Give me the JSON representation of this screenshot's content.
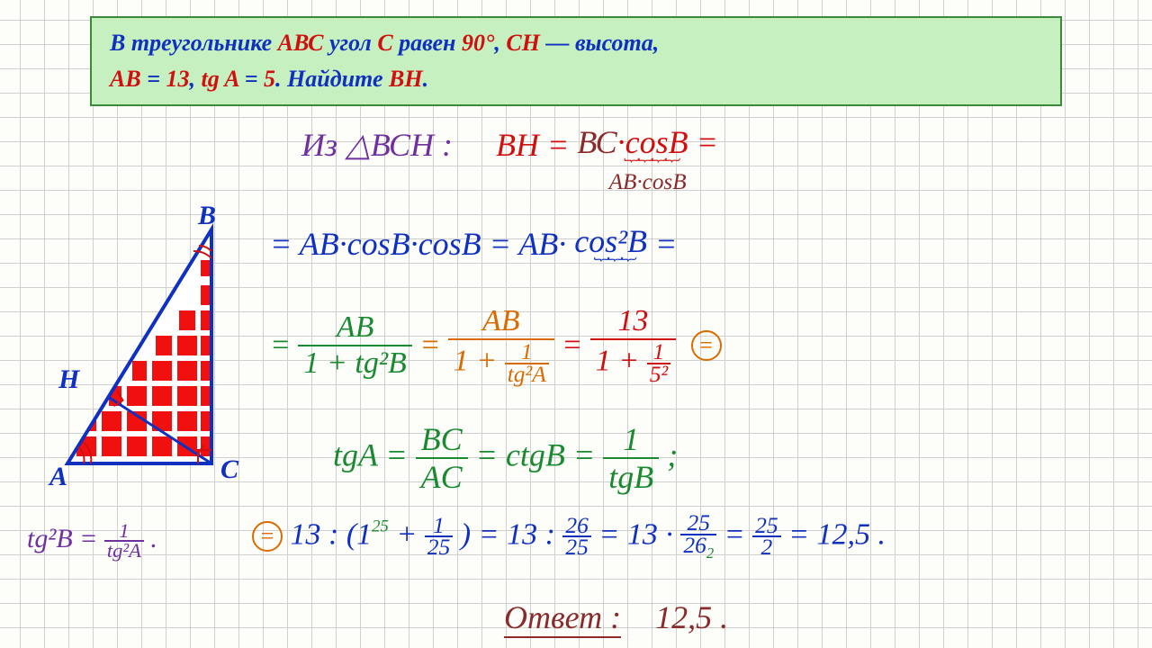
{
  "problem": {
    "parts": [
      {
        "text": "В треугольнике ",
        "cls": "c-blue"
      },
      {
        "text": "АВС ",
        "cls": "c-red"
      },
      {
        "text": "угол ",
        "cls": "c-blue"
      },
      {
        "text": "С ",
        "cls": "c-red"
      },
      {
        "text": "равен ",
        "cls": "c-blue"
      },
      {
        "text": "90°",
        "cls": "c-red"
      },
      {
        "text": ", ",
        "cls": "c-blue"
      },
      {
        "text": "СН",
        "cls": "c-red"
      },
      {
        "text": "   — высота,",
        "cls": "c-blue"
      }
    ],
    "parts2": [
      {
        "text": "АВ ",
        "cls": "c-red"
      },
      {
        "text": "= ",
        "cls": "c-blue"
      },
      {
        "text": "13",
        "cls": "c-red"
      },
      {
        "text": ", ",
        "cls": "c-blue"
      },
      {
        "text": "tg A ",
        "cls": "c-red"
      },
      {
        "text": "= ",
        "cls": "c-blue"
      },
      {
        "text": "5",
        "cls": "c-red"
      },
      {
        "text": ". Найдите ",
        "cls": "c-blue"
      },
      {
        "text": "ВН",
        "cls": "c-red"
      },
      {
        "text": ".",
        "cls": "c-blue"
      }
    ]
  },
  "triangle": {
    "labels": {
      "A": "A",
      "B": "B",
      "C": "C",
      "H": "H"
    },
    "stroke": "#1030c0",
    "fill": "#f01010",
    "grid_spacing": 28
  },
  "solution": {
    "line1_prefix": "Из △ВСН :",
    "line1_bh": "ВН = ",
    "line1_bc": "ВС",
    "line1_cosb": "·cosB =",
    "line1_under": "AB·cosB",
    "line2_a": "= AB·cosB·cosB = AB·",
    "line2_brace_top": "cos²B",
    "line2_end": " =",
    "line3_eq": "=",
    "line3_f1_num": "AB",
    "line3_f1_den": "1 + tg²B",
    "line3_f2_num": "AB",
    "line3_f2_den_pre": "1 + ",
    "line3_f2_den_sf_num": "1",
    "line3_f2_den_sf_den": "tg²A",
    "line3_f3_num": "13",
    "line3_f3_den_pre": "1 + ",
    "line3_f3_den_sf_num": "1",
    "line3_f3_den_sf_den": "5²",
    "tan_line": "tgA = ",
    "tan_frac_num": "BC",
    "tan_frac_den": "AC",
    "ctg": " = ctgB = ",
    "ctg_frac_num": "1",
    "ctg_frac_den": "tgB",
    "final_prefix": "13 : ",
    "final_paren_pre": "(1   +",
    "final_sup": "25",
    "final_small_num": "1",
    "final_small_den": "25",
    "final_paren_post": ") = 13 : ",
    "f_a_num": "26",
    "f_a_den": "25",
    "final_mid": " = 13 · ",
    "f_b_num": "25",
    "f_b_den": "26",
    "f_b_sub": "2",
    "final_eq2": " = ",
    "f_c_num": "25",
    "f_c_den": "2",
    "final_ans": " = 12,5 .",
    "answer_label": "Ответ :",
    "answer_value": "12,5 .",
    "note_lhs": "tg²B = ",
    "note_frac_num": "1",
    "note_frac_den": "tg²A",
    "note_period": "."
  },
  "colors": {
    "blue": "#1030c0",
    "red": "#d01010",
    "orange": "#d96b00",
    "green": "#1a8a30",
    "purple": "#7030a0",
    "darkred": "#8a2a2a"
  }
}
